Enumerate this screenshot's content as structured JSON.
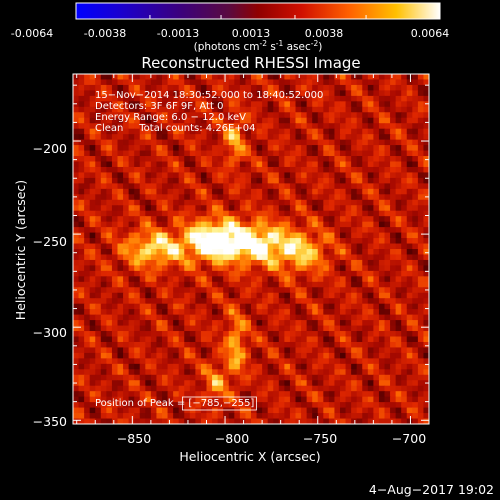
{
  "colorbar": {
    "ticks": [
      "-0.0064",
      "-0.0038",
      "-0.0013",
      "0.0013",
      "0.0038",
      "0.0064"
    ],
    "units_main": "(photons cm",
    "units_sup1": "-2",
    "units_s": " s",
    "units_sup2": "-1",
    "units_asec": " asec",
    "units_sup3": "-2",
    "units_end": ")"
  },
  "chart_data": {
    "type": "heatmap",
    "title": "Reconstructed RHESSI Image",
    "xlabel": "Heliocentric X (arcsec)",
    "ylabel": "Heliocentric Y (arcsec)",
    "xlim": [
      -882,
      -690
    ],
    "ylim": [
      -352,
      -164
    ],
    "xticks": [
      -850,
      -800,
      -750,
      -700
    ],
    "yticks": [
      -200,
      -250,
      -300,
      -350
    ],
    "xtick_labels": [
      "−850",
      "−800",
      "−750",
      "−700"
    ],
    "ytick_labels": [
      "−200",
      "−250",
      "−300",
      "−350"
    ],
    "colorbar_range": [
      -0.0064,
      0.0064
    ],
    "colormap": "black-blue-purple-red-orange-yellow-white",
    "info": {
      "line1": "15−Nov−2014 18:30:52.000 to 18:40:52.000",
      "line2": "Detectors: 3F 6F 9F, Att 0",
      "line3": "Energy Range: 6.0 − 12.0 keV",
      "line4": "Clean     Total counts: 4.26E+04"
    },
    "peak_label": "Position of Peak = [−785,−255]",
    "peak": [
      -785,
      -255
    ],
    "sources": [
      {
        "x": -785,
        "y": -255,
        "amp": 1.0,
        "sx": 14,
        "sy": 8
      },
      {
        "x": -808,
        "y": -253,
        "amp": 0.9,
        "sx": 10,
        "sy": 8
      },
      {
        "x": -838,
        "y": -258,
        "amp": 0.8,
        "sx": 12,
        "sy": 7
      },
      {
        "x": -758,
        "y": -260,
        "amp": 0.6,
        "sx": 10,
        "sy": 8
      },
      {
        "x": -795,
        "y": -200,
        "amp": 0.55,
        "sx": 4,
        "sy": 10
      },
      {
        "x": -794,
        "y": -310,
        "amp": 0.6,
        "sx": 4,
        "sy": 12
      },
      {
        "x": -805,
        "y": -330,
        "amp": 0.45,
        "sx": 5,
        "sy": 8
      }
    ]
  },
  "footer": {
    "date": "4−Aug−2017 19:02"
  }
}
